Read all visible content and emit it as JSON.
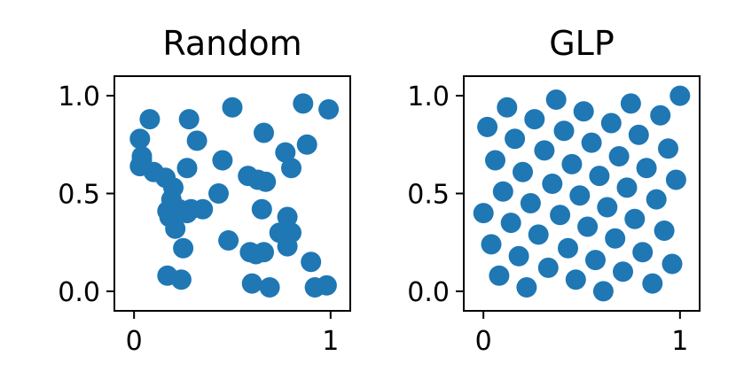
{
  "colors": {
    "points": "#1f77b4",
    "axes": "#000000",
    "background": "#ffffff"
  },
  "chart_data": [
    {
      "type": "scatter",
      "title": "Random",
      "xlabel": "",
      "ylabel": "",
      "xlim": [
        -0.1,
        1.1
      ],
      "ylim": [
        -0.1,
        1.1
      ],
      "xticks": [
        0,
        1
      ],
      "xtick_labels": [
        "0",
        "1"
      ],
      "yticks": [
        0.0,
        0.5,
        1.0
      ],
      "ytick_labels": [
        "0.0",
        "0.5",
        "1.0"
      ],
      "grid": false,
      "x": [
        0.08,
        0.28,
        0.5,
        0.86,
        0.99,
        0.03,
        0.32,
        0.66,
        0.04,
        0.03,
        0.1,
        0.88,
        0.27,
        0.45,
        0.77,
        0.04,
        0.16,
        0.2,
        0.58,
        0.63,
        0.67,
        0.8,
        0.43,
        0.19,
        0.17,
        0.18,
        0.23,
        0.35,
        0.65,
        0.29,
        0.78,
        0.21,
        0.25,
        0.48,
        0.74,
        0.8,
        0.59,
        0.62,
        0.66,
        0.78,
        0.27,
        0.9,
        0.17,
        0.24,
        0.6,
        0.69,
        0.92,
        0.98
      ],
      "y": [
        0.88,
        0.88,
        0.94,
        0.96,
        0.93,
        0.78,
        0.77,
        0.81,
        0.69,
        0.64,
        0.61,
        0.75,
        0.63,
        0.67,
        0.71,
        0.67,
        0.58,
        0.53,
        0.59,
        0.57,
        0.56,
        0.63,
        0.5,
        0.47,
        0.41,
        0.38,
        0.42,
        0.42,
        0.42,
        0.42,
        0.38,
        0.32,
        0.22,
        0.26,
        0.3,
        0.3,
        0.2,
        0.19,
        0.2,
        0.23,
        0.4,
        0.15,
        0.08,
        0.06,
        0.04,
        0.02,
        0.02,
        0.03
      ]
    },
    {
      "type": "scatter",
      "title": "GLP",
      "xlabel": "",
      "ylabel": "",
      "xlim": [
        -0.1,
        1.1
      ],
      "ylim": [
        -0.1,
        1.1
      ],
      "xticks": [
        0,
        1
      ],
      "xtick_labels": [
        "0",
        "1"
      ],
      "yticks": [
        0.0,
        0.5,
        1.0
      ],
      "ytick_labels": [
        "0.0",
        "0.5",
        "1.0"
      ],
      "grid": false,
      "x": [
        0.0,
        0.02,
        0.04,
        0.06,
        0.08,
        0.1,
        0.12,
        0.14,
        0.16,
        0.18,
        0.2,
        0.22,
        0.24,
        0.26,
        0.28,
        0.31,
        0.33,
        0.35,
        0.37,
        0.39,
        0.41,
        0.43,
        0.45,
        0.47,
        0.49,
        0.51,
        0.53,
        0.55,
        0.57,
        0.59,
        0.61,
        0.63,
        0.65,
        0.67,
        0.69,
        0.71,
        0.73,
        0.75,
        0.77,
        0.79,
        0.81,
        0.83,
        0.86,
        0.88,
        0.9,
        0.92,
        0.94,
        0.96,
        0.98,
        1.0
      ],
      "y": [
        0.4,
        0.84,
        0.24,
        0.67,
        0.08,
        0.51,
        0.94,
        0.35,
        0.78,
        0.18,
        0.61,
        0.02,
        0.45,
        0.88,
        0.29,
        0.72,
        0.12,
        0.55,
        0.98,
        0.39,
        0.82,
        0.22,
        0.65,
        0.06,
        0.49,
        0.92,
        0.33,
        0.76,
        0.16,
        0.59,
        0.0,
        0.43,
        0.86,
        0.27,
        0.69,
        0.1,
        0.53,
        0.96,
        0.37,
        0.8,
        0.2,
        0.63,
        0.04,
        0.47,
        0.9,
        0.31,
        0.73,
        0.14,
        0.57,
        1.0
      ]
    }
  ]
}
